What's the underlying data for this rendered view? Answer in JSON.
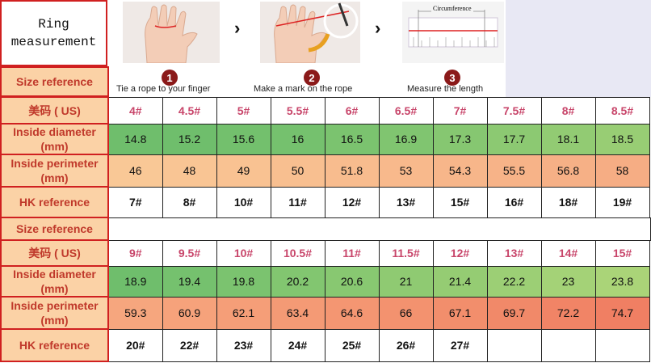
{
  "title_lines": [
    "Ring",
    "measurement"
  ],
  "steps": [
    {
      "num": "1",
      "caption": "Tie a rope to your finger"
    },
    {
      "num": "2",
      "caption": "Make a mark on the rope"
    },
    {
      "num": "3",
      "caption": "Measure the length"
    }
  ],
  "ruler_label": "Circumference",
  "labels": {
    "size_ref": "Size reference",
    "us": "美码 ( US)",
    "dia": [
      "Inside diameter",
      "(mm)"
    ],
    "per": [
      "Inside  perimeter",
      "(mm)"
    ],
    "hk": "HK reference"
  },
  "table1": {
    "us": [
      "4#",
      "4.5#",
      "5#",
      "5.5#",
      "6#",
      "6.5#",
      "7#",
      "7.5#",
      "8#",
      "8.5#"
    ],
    "dia": [
      "14.8",
      "15.2",
      "15.6",
      "16",
      "16.5",
      "16.9",
      "17.3",
      "17.7",
      "18.1",
      "18.5"
    ],
    "per": [
      "46",
      "48",
      "49",
      "50",
      "51.8",
      "53",
      "54.3",
      "55.5",
      "56.8",
      "58"
    ],
    "hk": [
      "7#",
      "8#",
      "10#",
      "11#",
      "12#",
      "13#",
      "15#",
      "16#",
      "18#",
      "19#"
    ]
  },
  "table2": {
    "us": [
      "9#",
      "9.5#",
      "10#",
      "10.5#",
      "11#",
      "11.5#",
      "12#",
      "13#",
      "14#",
      "15#"
    ],
    "dia": [
      "18.9",
      "19.4",
      "19.8",
      "20.2",
      "20.6",
      "21",
      "21.4",
      "22.2",
      "23",
      "23.8"
    ],
    "per": [
      "59.3",
      "60.9",
      "62.1",
      "63.4",
      "64.6",
      "66",
      "67.1",
      "69.7",
      "72.2",
      "74.7"
    ],
    "hk": [
      "20#",
      "22#",
      "23#",
      "24#",
      "25#",
      "26#",
      "27#",
      "",
      "",
      ""
    ]
  },
  "colors": {
    "dia_1": [
      "#6fbe6c",
      "#6fbe6c",
      "#73c06d",
      "#75c16e",
      "#7bc36f",
      "#80c570",
      "#86c771",
      "#8cc972",
      "#92cb73",
      "#98cd74"
    ],
    "per_1": [
      "#f9c896",
      "#f9c594",
      "#f9c292",
      "#f8bf90",
      "#f8bc8e",
      "#f8b98c",
      "#f7b68a",
      "#f7b388",
      "#f6b086",
      "#f6ad84"
    ],
    "dia_2": [
      "#6fbe6c",
      "#75c16e",
      "#7bc36f",
      "#82c670",
      "#88c871",
      "#8fca72",
      "#95cc73",
      "#9ccf75",
      "#a4d277",
      "#aad478"
    ],
    "per_2": [
      "#f6a67e",
      "#f6a27b",
      "#f59e78",
      "#f49a75",
      "#f49672",
      "#f3926f",
      "#f28e6c",
      "#f18969",
      "#f18466",
      "#f07f63"
    ]
  }
}
